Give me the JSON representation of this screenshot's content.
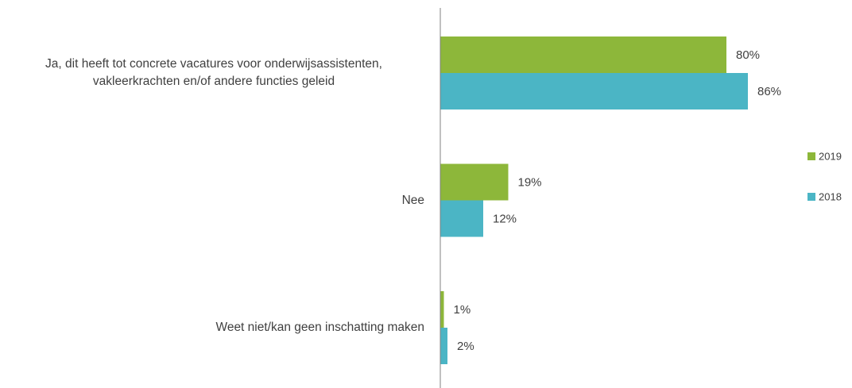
{
  "chart_data": {
    "type": "bar",
    "orientation": "horizontal",
    "categories": [
      "Ja, dit heeft tot concrete vacatures voor onderwijsassistenten, vakleerkrachten en/of andere functies geleid",
      "Nee",
      "Weet niet/kan geen inschatting maken"
    ],
    "series": [
      {
        "name": "2019",
        "color": "#8db73a",
        "values": [
          80,
          19,
          1
        ],
        "value_labels": [
          "80%",
          "19%",
          "1%"
        ]
      },
      {
        "name": "2018",
        "color": "#4bb5c5",
        "values": [
          86,
          12,
          2
        ],
        "value_labels": [
          "86%",
          "12%",
          "2%"
        ]
      }
    ],
    "xlim": [
      0,
      100
    ],
    "legend": "right"
  }
}
